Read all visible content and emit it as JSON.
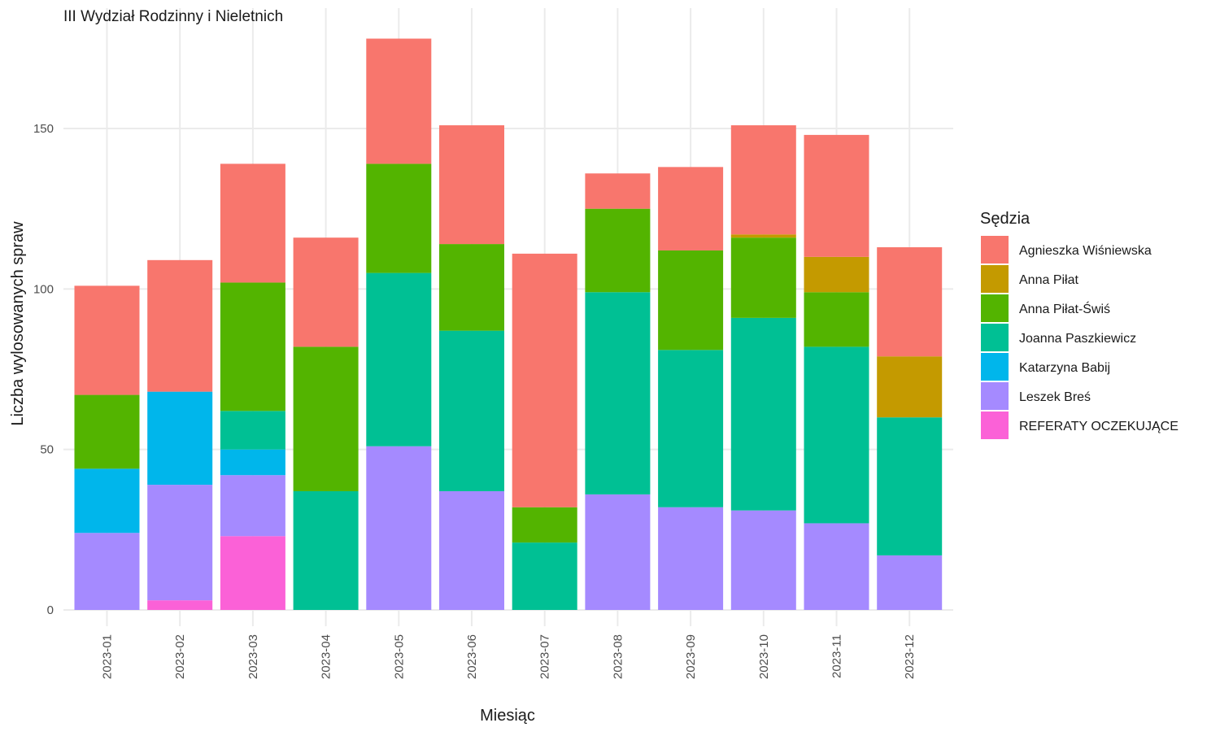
{
  "chart_data": {
    "type": "bar",
    "stacked": true,
    "title": "III Wydział Rodzinny i Nieletnich",
    "xlabel": "Miesiąc",
    "ylabel": "Liczba wylosowanych spraw",
    "ylim": [
      0,
      180
    ],
    "y_ticks": [
      0,
      50,
      100,
      150
    ],
    "grid": true,
    "legend_title": "Sędzia",
    "legend_position": "right",
    "categories": [
      "2023-01",
      "2023-02",
      "2023-03",
      "2023-04",
      "2023-05",
      "2023-06",
      "2023-07",
      "2023-08",
      "2023-09",
      "2023-10",
      "2023-11",
      "2023-12"
    ],
    "series": [
      {
        "name": "Agnieszka Wiśniewska",
        "color": "#F8766D",
        "values": [
          34,
          41,
          37,
          34,
          39,
          37,
          79,
          11,
          26,
          34,
          38,
          34
        ]
      },
      {
        "name": "Anna Piłat",
        "color": "#C49A00",
        "values": [
          0,
          0,
          0,
          0,
          0,
          0,
          0,
          0,
          0,
          1,
          11,
          19
        ]
      },
      {
        "name": "Anna Piłat-Świś",
        "color": "#53B400",
        "values": [
          23,
          0,
          40,
          45,
          34,
          27,
          11,
          26,
          31,
          25,
          17,
          0
        ]
      },
      {
        "name": "Joanna Paszkiewicz",
        "color": "#00C094",
        "values": [
          0,
          0,
          12,
          37,
          54,
          50,
          21,
          63,
          49,
          60,
          55,
          43
        ]
      },
      {
        "name": "Katarzyna Babij",
        "color": "#00B6EB",
        "values": [
          20,
          29,
          8,
          0,
          0,
          0,
          0,
          0,
          0,
          0,
          0,
          0
        ]
      },
      {
        "name": "Leszek Breś",
        "color": "#A58AFF",
        "values": [
          24,
          36,
          19,
          0,
          51,
          37,
          0,
          36,
          32,
          31,
          27,
          17
        ]
      },
      {
        "name": "REFERATY OCZEKUJĄCE",
        "color": "#FB61D7",
        "values": [
          0,
          3,
          23,
          0,
          0,
          0,
          0,
          0,
          0,
          0,
          0,
          0
        ]
      }
    ]
  }
}
